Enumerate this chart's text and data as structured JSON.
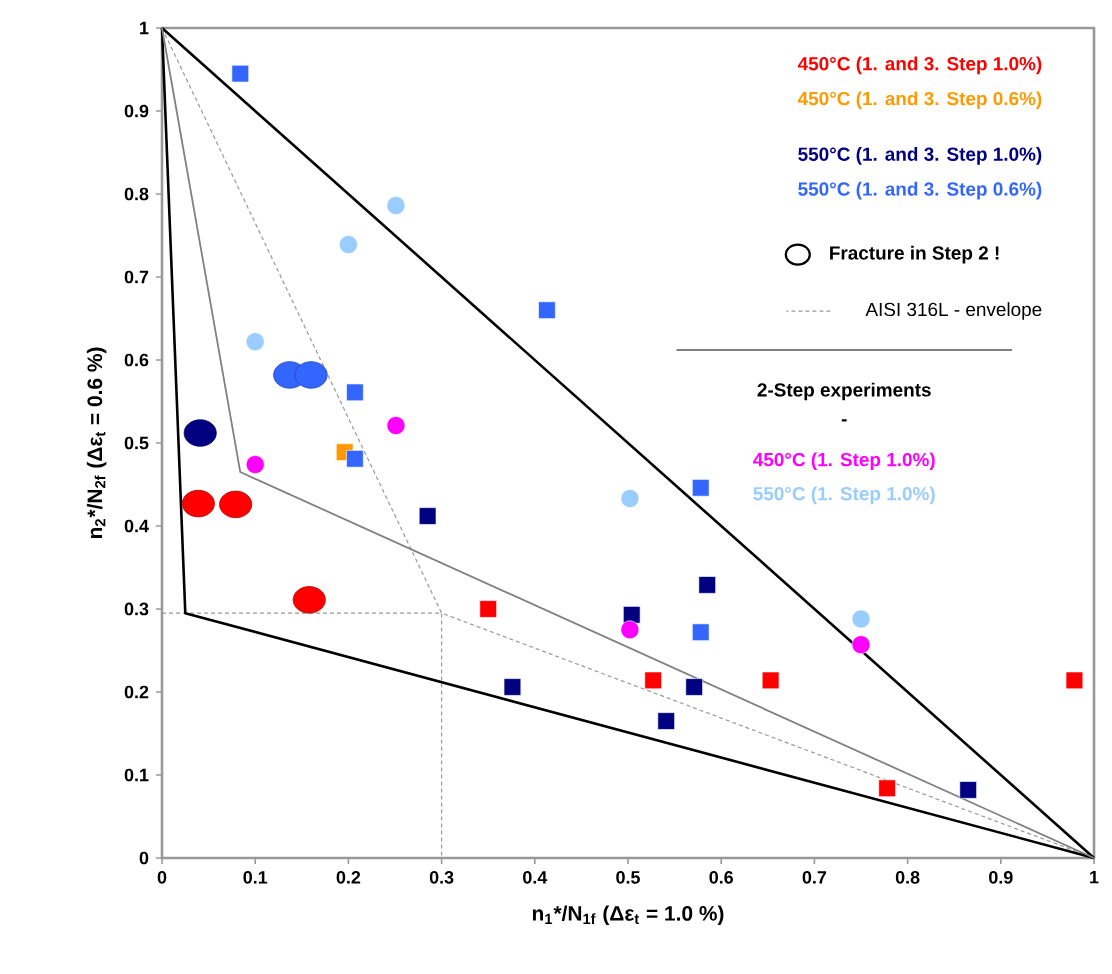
{
  "chart_data": {
    "type": "scatter",
    "xlabel": "n$_{1}$*/N$_{1f}$ (Δε$_{t}$ = 1.0 %)",
    "ylabel": "n$_{2}$*/N$_{2f}$ (Δε$_{t}$ = 0.6 %)",
    "xlim": [
      0,
      1
    ],
    "ylim": [
      0,
      1
    ],
    "xticks": [
      0,
      0.1,
      0.2,
      0.3,
      0.4,
      0.5,
      0.6,
      0.7,
      0.8,
      0.9,
      1
    ],
    "yticks": [
      0,
      0.1,
      0.2,
      0.3,
      0.4,
      0.5,
      0.6,
      0.7,
      0.8,
      0.9,
      1
    ],
    "grid": false,
    "legend": "top right",
    "annotations": [
      "Fracture in Step 2 !",
      "2-Step experiments",
      "-"
    ],
    "series": [
      {
        "name": "450°C (1. and 3. Step 1.0%)",
        "color": "#ff0000",
        "marker": "square",
        "x": [
          0.35,
          0.527,
          0.653,
          0.979,
          0.778
        ],
        "values": [
          0.3,
          0.214,
          0.214,
          0.214,
          0.084
        ]
      },
      {
        "name": "450°C (1. and 3. Step 0.6%)",
        "color": "#ff9900",
        "marker": "square",
        "x": [
          0.196
        ],
        "values": [
          0.489
        ]
      },
      {
        "name": "550°C (1. and 3. Step 1.0%)",
        "color": "#000080",
        "marker": "square",
        "x": [
          0.285,
          0.376,
          0.504,
          0.585,
          0.571,
          0.541,
          0.865
        ],
        "values": [
          0.412,
          0.206,
          0.293,
          0.329,
          0.206,
          0.165,
          0.082
        ]
      },
      {
        "name": "550°C (1. and 3. Step 0.6%)",
        "color": "#3366ff",
        "marker": "square",
        "x": [
          0.084,
          0.413,
          0.207,
          0.207,
          0.578,
          0.578
        ],
        "values": [
          0.945,
          0.66,
          0.561,
          0.481,
          0.446,
          0.272
        ]
      },
      {
        "color": "#ff0000",
        "marker": "circle",
        "x": [
          0.039,
          0.079,
          0.158
        ],
        "values": [
          0.427,
          0.426,
          0.311
        ]
      },
      {
        "color": "#000080",
        "marker": "circle",
        "x": [
          0.041
        ],
        "values": [
          0.512
        ]
      },
      {
        "color": "#3366ff",
        "marker": "circle",
        "x": [
          0.137,
          0.16
        ],
        "values": [
          0.582,
          0.582
        ]
      },
      {
        "name": "AISI 316L - envelope",
        "type": "line",
        "line_style": "dashed",
        "marker": "none",
        "color": "#999999",
        "x": [
          0,
          0.3,
          1
        ],
        "values": [
          1,
          0.295,
          0
        ]
      },
      {
        "name": "450°C (1. Step 1.0%)",
        "color": "#ff00ff",
        "marker": "circle",
        "x": [
          0.1,
          0.251,
          0.502,
          0.75
        ],
        "values": [
          0.474,
          0.521,
          0.275,
          0.257
        ]
      },
      {
        "name": "550°C (1. Step 1.0%)",
        "color": "#99ccff",
        "marker": "circle",
        "x": [
          0.1,
          0.2,
          0.251,
          0.502,
          0.75
        ],
        "values": [
          0.622,
          0.739,
          0.786,
          0.433,
          0.288
        ]
      },
      {
        "type": "line",
        "line_style": "dashed",
        "marker": "none",
        "color": "#999999",
        "x": [
          0,
          0.3,
          0.3
        ],
        "values": [
          0.295,
          0.295,
          0
        ]
      },
      {
        "type": "line",
        "line_style": "solid",
        "marker": "none",
        "color": "#000000",
        "x": [
          0,
          1
        ],
        "values": [
          1,
          0
        ]
      },
      {
        "type": "line",
        "line_style": "solid",
        "marker": "none",
        "color": "#000000",
        "x": [
          0,
          0.025,
          1
        ],
        "values": [
          1,
          0.295,
          0
        ]
      },
      {
        "type": "line",
        "line_style": "solid",
        "marker": "none",
        "color": "#808080",
        "x": [
          0,
          0.084,
          1
        ],
        "values": [
          1,
          0.465,
          0
        ]
      }
    ]
  }
}
